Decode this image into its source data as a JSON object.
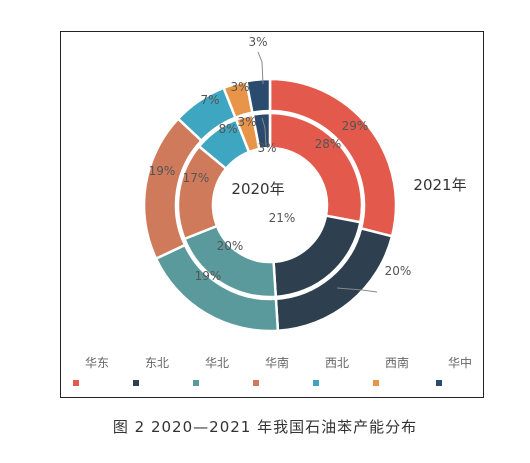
{
  "chart_data": {
    "type": "donut",
    "categories": [
      "华东",
      "东北",
      "华北",
      "华南",
      "西北",
      "西南",
      "华中"
    ],
    "colors": [
      "#e35a4c",
      "#2e3f4f",
      "#5a9a9c",
      "#cf7a5b",
      "#3fa6c1",
      "#e8954a",
      "#2a4a6e"
    ],
    "series": [
      {
        "name": "2021年",
        "values": [
          29,
          20,
          19,
          19,
          7,
          3,
          3
        ]
      },
      {
        "name": "2020年",
        "values": [
          28,
          21,
          20,
          17,
          8,
          3,
          3
        ]
      }
    ],
    "value_labels_outer": [
      "29%",
      "20%",
      "19%",
      "19%",
      "7%",
      "3%",
      "3%"
    ],
    "value_labels_inner": [
      "28%",
      "21%",
      "20%",
      "17%",
      "8%",
      "3%",
      "3%"
    ],
    "legend_position": "bottom"
  },
  "caption": "图 2  2020—2021 年我国石油苯产能分布"
}
